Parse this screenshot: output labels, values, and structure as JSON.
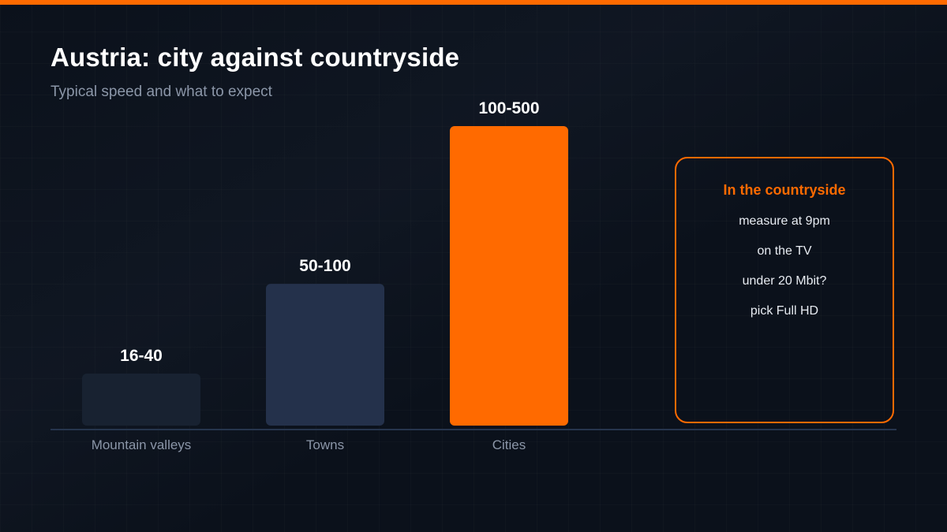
{
  "title": "Austria: city against countryside",
  "subtitle": "Typical speed and what to expect",
  "colors": {
    "accent": "#ff6a00",
    "background": "#0b111b",
    "bar_mountain": "#182231",
    "bar_towns": "#24314b",
    "bar_cities": "#ff6a00"
  },
  "note": {
    "heading": "In the countryside",
    "lines": [
      "measure at 9pm",
      "on the TV",
      "under 20 Mbit?",
      "pick Full HD"
    ]
  },
  "chart_data": {
    "type": "bar",
    "categories": [
      "Mountain valleys",
      "Towns",
      "Cities"
    ],
    "ranges": [
      [
        16,
        40
      ],
      [
        50,
        100
      ],
      [
        100,
        500
      ]
    ],
    "values": [
      40,
      100,
      500
    ],
    "labels": [
      "16-40",
      "50-100",
      "100-500"
    ],
    "bar_colors": [
      "#182231",
      "#24314b",
      "#ff6a00"
    ],
    "title": "",
    "xlabel": "",
    "ylabel": "",
    "ylim": [
      0,
      500
    ],
    "grid": false,
    "legend": "none"
  }
}
